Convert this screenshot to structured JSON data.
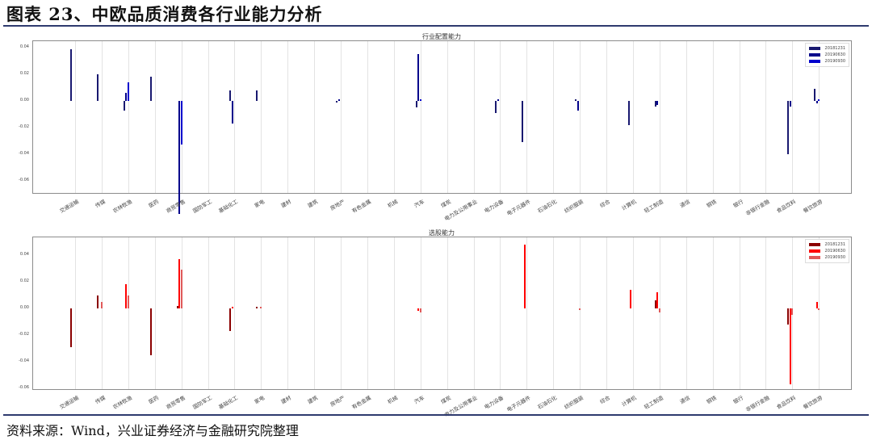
{
  "header": {
    "title": "图表 23、中欧品质消费各行业能力分析"
  },
  "footer": {
    "source": "资料来源：Wind，兴业证券经济与金融研究院整理"
  },
  "chart_data": [
    {
      "type": "bar",
      "title": "行业配置能力",
      "xlabel": "",
      "ylabel": "",
      "ylim": [
        -0.09,
        0.045
      ],
      "yticks": [
        "0.04",
        "0.02",
        "0.00",
        "-0.02",
        "-0.04",
        "-0.06"
      ],
      "grid": "x",
      "legend_position": "upper right",
      "categories": [
        "交通运输",
        "传媒",
        "农林牧渔",
        "医药",
        "商贸零售",
        "国防军工",
        "基础化工",
        "家电",
        "建材",
        "建筑",
        "房地产",
        "有色金属",
        "机械",
        "汽车",
        "煤炭",
        "电力及公用事业",
        "电力设备",
        "电子元器件",
        "石油石化",
        "纺织服装",
        "综合",
        "计算机",
        "轻工制造",
        "通信",
        "钢铁",
        "银行",
        "非银行金融",
        "食品饮料",
        "餐饮旅游"
      ],
      "series": [
        {
          "name": "20181231",
          "color": "#191970",
          "values": [
            0.039,
            0.02,
            -0.007,
            0.018,
            0.0,
            0,
            0.008,
            0.008,
            0,
            0,
            -0.001,
            0,
            0,
            -0.005,
            0,
            0,
            -0.009,
            -0.031,
            0,
            0.001,
            0,
            -0.018,
            -0.004,
            0,
            0,
            0,
            0,
            -0.04,
            0.009
          ]
        },
        {
          "name": "20190630",
          "color": "#00008b",
          "values": [
            0.0,
            0.0,
            0.006,
            0.0,
            -0.085,
            0,
            -0.017,
            0.0,
            0,
            0,
            0.001,
            0,
            0,
            0.035,
            0,
            0,
            0.001,
            0,
            0,
            -0.007,
            0,
            0,
            -0.003,
            0,
            0,
            0,
            0,
            -0.004,
            -0.002
          ]
        },
        {
          "name": "20190930",
          "color": "#0000cd",
          "values": [
            0,
            0,
            0.014,
            0,
            -0.033,
            0,
            0,
            0,
            0,
            0,
            0,
            0,
            0,
            0.001,
            0,
            0,
            0,
            0,
            0,
            0,
            0,
            0,
            0,
            0,
            0,
            0,
            0,
            0,
            0.001
          ]
        }
      ]
    },
    {
      "type": "bar",
      "title": "选股能力",
      "xlabel": "",
      "ylabel": "",
      "ylim": [
        -0.062,
        0.053
      ],
      "yticks": [
        "0.04",
        "0.02",
        "0.00",
        "-0.02",
        "-0.04",
        "-0.06"
      ],
      "grid": "x",
      "legend_position": "upper right",
      "categories": [
        "交通运输",
        "传媒",
        "农林牧渔",
        "医药",
        "商贸零售",
        "国防军工",
        "基础化工",
        "家电",
        "建材",
        "建筑",
        "房地产",
        "有色金属",
        "机械",
        "汽车",
        "煤炭",
        "电力及公用事业",
        "电力设备",
        "电子元器件",
        "石油石化",
        "纺织服装",
        "综合",
        "计算机",
        "轻工制造",
        "通信",
        "钢铁",
        "银行",
        "非银行金融",
        "食品饮料",
        "餐饮旅游"
      ],
      "series": [
        {
          "name": "20181231",
          "color": "#8b0000",
          "values": [
            -0.029,
            0.01,
            0,
            -0.035,
            0.002,
            0,
            -0.017,
            0.001,
            0,
            0,
            0,
            0,
            0,
            0,
            0,
            0,
            0,
            0,
            0,
            0,
            0,
            0,
            0.006,
            0,
            0,
            0,
            0,
            -0.012,
            0
          ]
        },
        {
          "name": "20190630",
          "color": "#ff0000",
          "values": [
            0,
            0,
            0.018,
            0,
            0.037,
            0,
            0.001,
            0,
            0,
            0,
            0,
            0,
            0,
            -0.002,
            0,
            0,
            0,
            0.048,
            0,
            0,
            0,
            0.014,
            0.012,
            0,
            0,
            0,
            0,
            -0.057,
            0.005
          ]
        },
        {
          "name": "20190930",
          "color": "#e05a5a",
          "values": [
            0,
            0.005,
            0.01,
            0,
            0.029,
            0,
            0,
            0.001,
            0,
            0,
            0,
            0,
            0,
            -0.003,
            0,
            0,
            0,
            0,
            0,
            -0.001,
            0,
            0,
            -0.003,
            0,
            0,
            0,
            0,
            -0.005,
            -0.001
          ]
        }
      ]
    }
  ]
}
